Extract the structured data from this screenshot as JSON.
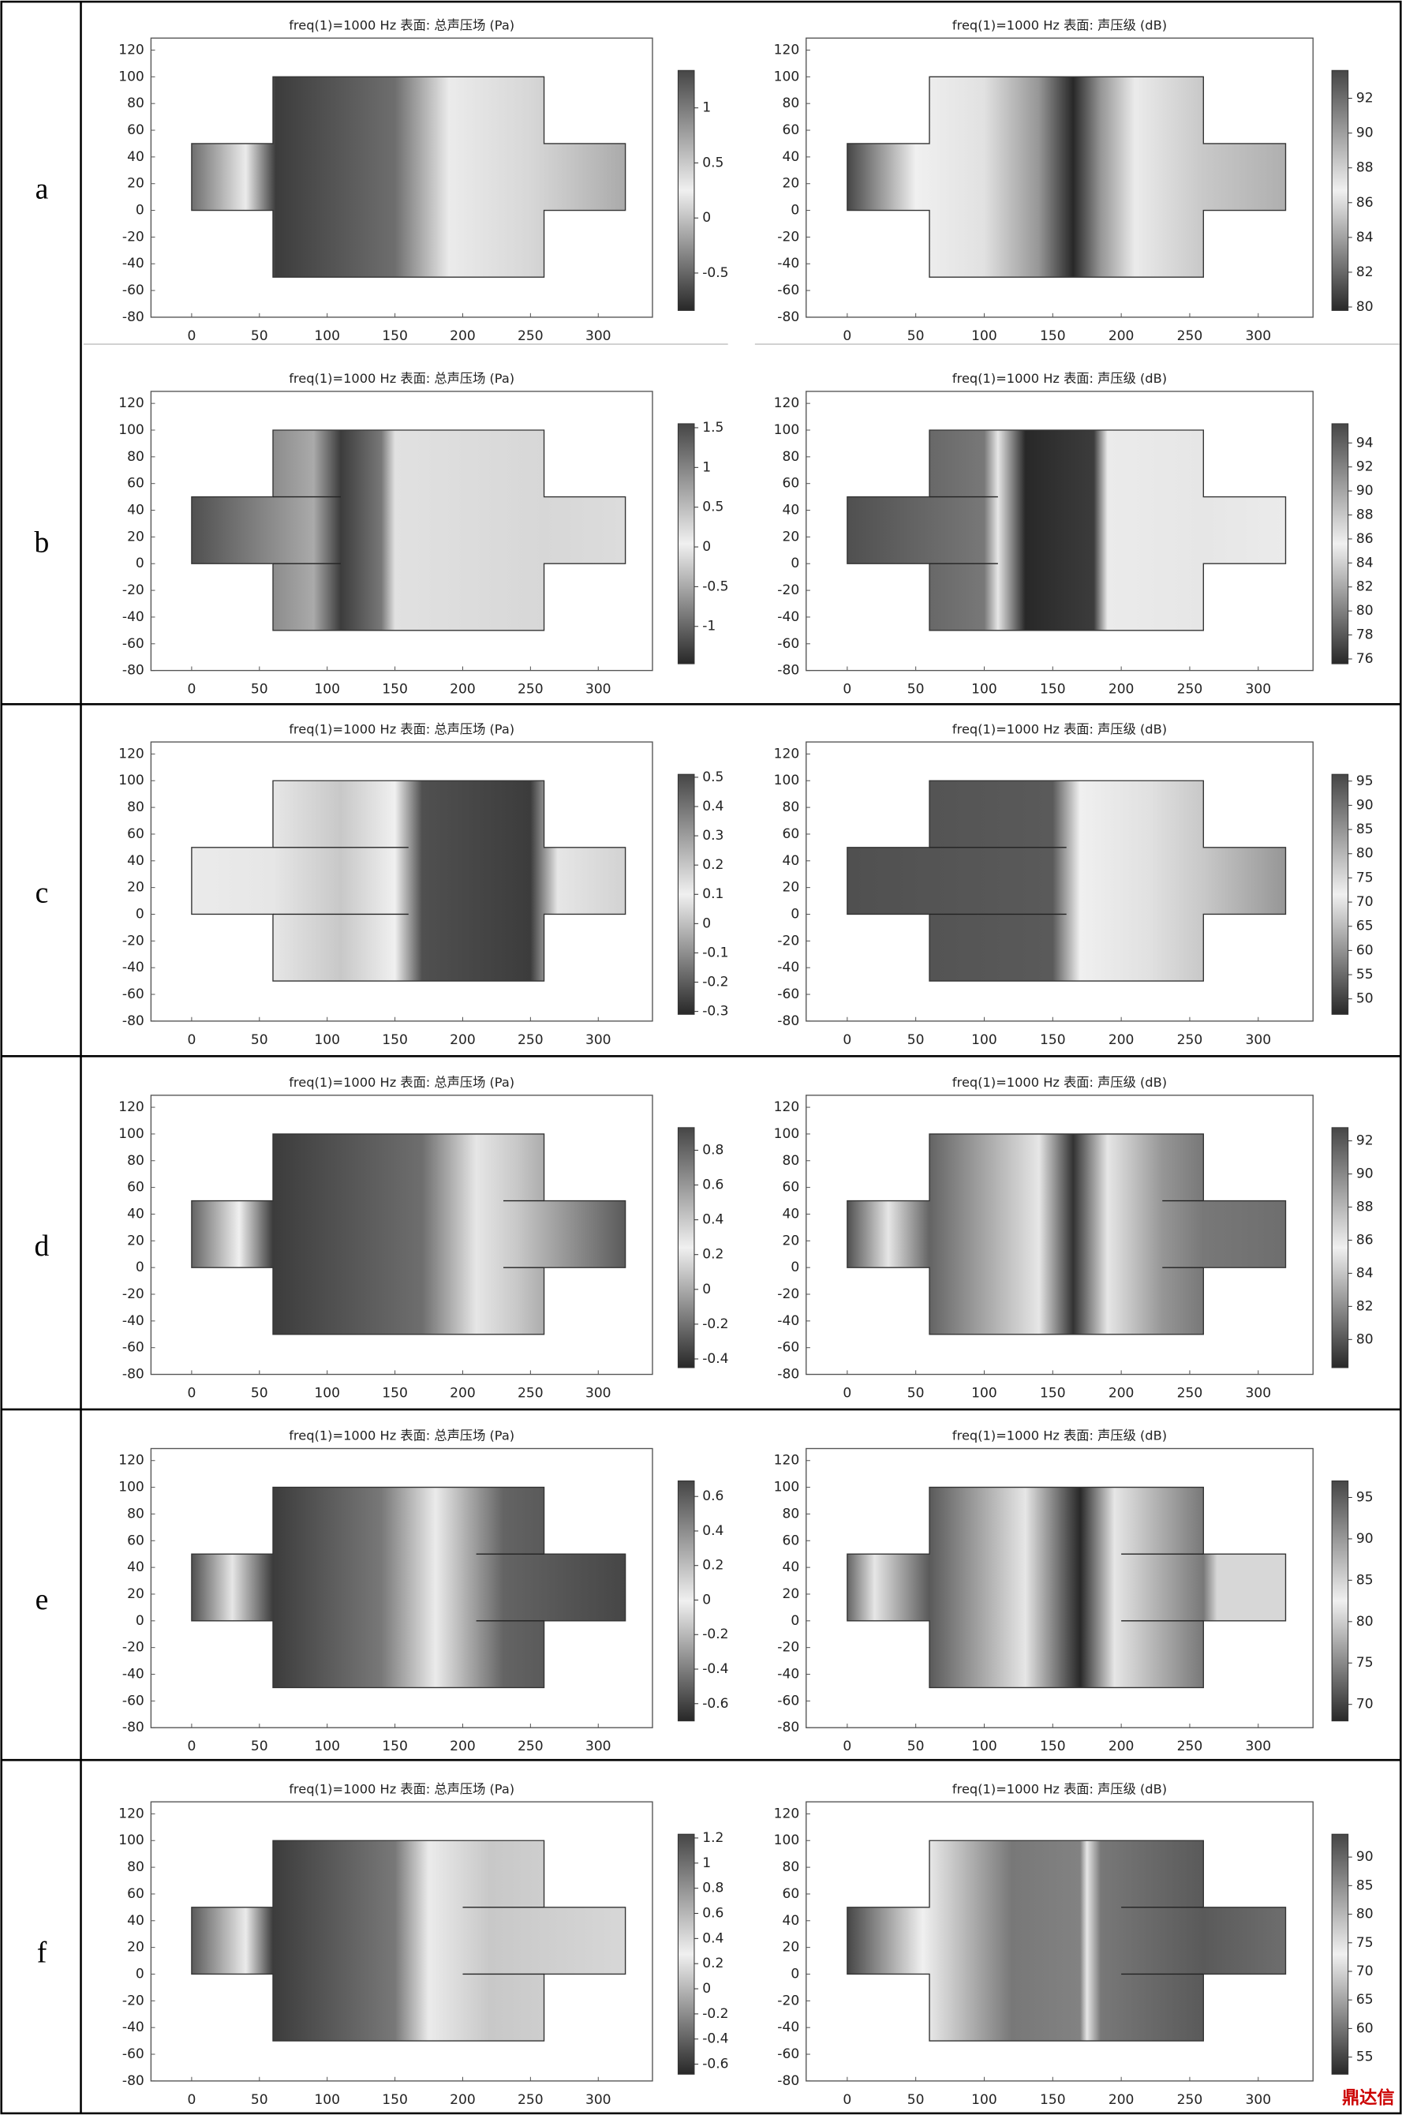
{
  "row_labels": [
    "a",
    "b",
    "c",
    "d",
    "e",
    "f"
  ],
  "watermark": "鼎达信",
  "chart_data": [
    {
      "type": "heatmap",
      "title": "freq(1)=1000 Hz   表面: 总声压场 (Pa)",
      "xlim": [
        -30,
        340
      ],
      "ylim": [
        -80,
        129
      ],
      "xticks": [
        0,
        50,
        100,
        150,
        200,
        250,
        300
      ],
      "yticks": [
        -80,
        -60,
        -40,
        -20,
        0,
        20,
        40,
        60,
        80,
        100,
        120
      ],
      "colorbar": {
        "lim": [
          -0.84,
          1.34
        ],
        "ticks": [
          1,
          0.5,
          0,
          -0.5
        ]
      }
    },
    {
      "type": "heatmap",
      "title": "freq(1)=1000 Hz   表面: 声压级 (dB)",
      "xlim": [
        -30,
        340
      ],
      "ylim": [
        -80,
        129
      ],
      "xticks": [
        0,
        50,
        100,
        150,
        200,
        250,
        300
      ],
      "yticks": [
        -80,
        -60,
        -40,
        -20,
        0,
        20,
        40,
        60,
        80,
        100,
        120
      ],
      "colorbar": {
        "lim": [
          79.8,
          93.6
        ],
        "ticks": [
          92,
          90,
          88,
          86,
          84,
          82,
          80
        ]
      }
    },
    {
      "type": "heatmap",
      "title": "freq(1)=1000 Hz   表面: 总声压场 (Pa)",
      "xlim": [
        -30,
        340
      ],
      "ylim": [
        -80,
        129
      ],
      "xticks": [
        0,
        50,
        100,
        150,
        200,
        250,
        300
      ],
      "yticks": [
        -80,
        -60,
        -40,
        -20,
        0,
        20,
        40,
        60,
        80,
        100,
        120
      ],
      "colorbar": {
        "lim": [
          -1.47,
          1.55
        ],
        "ticks": [
          1.5,
          1,
          0.5,
          0,
          -0.5,
          -1
        ]
      }
    },
    {
      "type": "heatmap",
      "title": "freq(1)=1000 Hz   表面: 声压级 (dB)",
      "xlim": [
        -30,
        340
      ],
      "ylim": [
        -80,
        129
      ],
      "xticks": [
        0,
        50,
        100,
        150,
        200,
        250,
        300
      ],
      "yticks": [
        -80,
        -60,
        -40,
        -20,
        0,
        20,
        40,
        60,
        80,
        100,
        120
      ],
      "colorbar": {
        "lim": [
          75.6,
          95.6
        ],
        "ticks": [
          94,
          92,
          90,
          88,
          86,
          84,
          82,
          80,
          78,
          76
        ]
      }
    },
    {
      "type": "heatmap",
      "title": "freq(1)=1000 Hz   表面: 总声压场 (Pa)",
      "xlim": [
        -30,
        340
      ],
      "ylim": [
        -80,
        129
      ],
      "xticks": [
        0,
        50,
        100,
        150,
        200,
        250,
        300
      ],
      "yticks": [
        -80,
        -60,
        -40,
        -20,
        0,
        20,
        40,
        60,
        80,
        100,
        120
      ],
      "colorbar": {
        "lim": [
          -0.31,
          0.51
        ],
        "ticks": [
          0.5,
          0.4,
          0.3,
          0.2,
          0.1,
          0,
          -0.1,
          -0.2,
          -0.3
        ]
      }
    },
    {
      "type": "heatmap",
      "title": "freq(1)=1000 Hz   表面: 声压级 (dB)",
      "xlim": [
        -30,
        340
      ],
      "ylim": [
        -80,
        129
      ],
      "xticks": [
        0,
        50,
        100,
        150,
        200,
        250,
        300
      ],
      "yticks": [
        -80,
        -60,
        -40,
        -20,
        0,
        20,
        40,
        60,
        80,
        100,
        120
      ],
      "colorbar": {
        "lim": [
          46.8,
          96.4
        ],
        "ticks": [
          95,
          90,
          85,
          80,
          75,
          70,
          65,
          60,
          55,
          50
        ]
      }
    },
    {
      "type": "heatmap",
      "title": "freq(1)=1000 Hz   表面: 总声压场 (Pa)",
      "xlim": [
        -30,
        340
      ],
      "ylim": [
        -80,
        129
      ],
      "xticks": [
        0,
        50,
        100,
        150,
        200,
        250,
        300
      ],
      "yticks": [
        -80,
        -60,
        -40,
        -20,
        0,
        20,
        40,
        60,
        80,
        100,
        120
      ],
      "colorbar": {
        "lim": [
          -0.45,
          0.93
        ],
        "ticks": [
          0.8,
          0.6,
          0.4,
          0.2,
          0,
          -0.2,
          -0.4
        ]
      }
    },
    {
      "type": "heatmap",
      "title": "freq(1)=1000 Hz   表面: 声压级 (dB)",
      "xlim": [
        -30,
        340
      ],
      "ylim": [
        -80,
        129
      ],
      "xticks": [
        0,
        50,
        100,
        150,
        200,
        250,
        300
      ],
      "yticks": [
        -80,
        -60,
        -40,
        -20,
        0,
        20,
        40,
        60,
        80,
        100,
        120
      ],
      "colorbar": {
        "lim": [
          78.3,
          92.8
        ],
        "ticks": [
          92,
          90,
          88,
          86,
          84,
          82,
          80
        ]
      }
    },
    {
      "type": "heatmap",
      "title": "freq(1)=1000 Hz   表面: 总声压场 (Pa)",
      "xlim": [
        -30,
        340
      ],
      "ylim": [
        -80,
        129
      ],
      "xticks": [
        0,
        50,
        100,
        150,
        200,
        250,
        300
      ],
      "yticks": [
        -80,
        -60,
        -40,
        -20,
        0,
        20,
        40,
        60,
        80,
        100,
        120
      ],
      "colorbar": {
        "lim": [
          -0.7,
          0.69
        ],
        "ticks": [
          0.6,
          0.4,
          0.2,
          0,
          -0.2,
          -0.4,
          -0.6
        ]
      }
    },
    {
      "type": "heatmap",
      "title": "freq(1)=1000 Hz   表面: 声压级 (dB)",
      "xlim": [
        -30,
        340
      ],
      "ylim": [
        -80,
        129
      ],
      "xticks": [
        0,
        50,
        100,
        150,
        200,
        250,
        300
      ],
      "yticks": [
        -80,
        -60,
        -40,
        -20,
        0,
        20,
        40,
        60,
        80,
        100,
        120
      ],
      "colorbar": {
        "lim": [
          68,
          97
        ],
        "ticks": [
          95,
          90,
          85,
          80,
          75,
          70
        ]
      }
    },
    {
      "type": "heatmap",
      "title": "freq(1)=1000 Hz   表面: 总声压场 (Pa)",
      "xlim": [
        -30,
        340
      ],
      "ylim": [
        -80,
        129
      ],
      "xticks": [
        0,
        50,
        100,
        150,
        200,
        250,
        300
      ],
      "yticks": [
        -80,
        -60,
        -40,
        -20,
        0,
        20,
        40,
        60,
        80,
        100,
        120
      ],
      "colorbar": {
        "lim": [
          -0.68,
          1.23
        ],
        "ticks": [
          1.2,
          1,
          0.8,
          0.6,
          0.4,
          0.2,
          0,
          -0.2,
          -0.4,
          -0.6
        ]
      }
    },
    {
      "type": "heatmap",
      "title": "freq(1)=1000 Hz   表面: 声压级 (dB)",
      "xlim": [
        -30,
        340
      ],
      "ylim": [
        -80,
        129
      ],
      "xticks": [
        0,
        50,
        100,
        150,
        200,
        250,
        300
      ],
      "yticks": [
        -80,
        -60,
        -40,
        -20,
        0,
        20,
        40,
        60,
        80,
        100,
        120
      ],
      "colorbar": {
        "lim": [
          52,
          94
        ],
        "ticks": [
          90,
          85,
          80,
          75,
          70,
          65,
          60,
          55
        ]
      }
    }
  ]
}
